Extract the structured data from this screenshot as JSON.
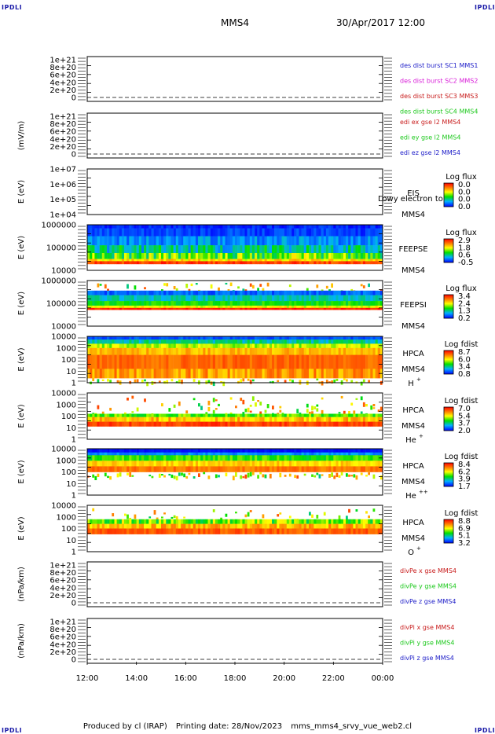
{
  "header": {
    "corner_label": "IPDLI",
    "spacecraft": "MMS4",
    "datetime": "30/Apr/2017 12:00"
  },
  "footer": {
    "produced_by": "Produced by cl (IRAP)",
    "printing_date": "Printing date: 28/Nov/2023",
    "script_name": "mms_mms4_srvy_vue_web2.cl"
  },
  "time_axis": {
    "ticks": [
      "12:00",
      "14:00",
      "16:00",
      "18:00",
      "20:00",
      "22:00",
      "00:00"
    ],
    "start_hour": 12,
    "end_hour": 24
  },
  "chart_data": [
    {
      "type": "line",
      "id": "des-dist",
      "ylabel": "",
      "ytick_labels": [
        "1e+21",
        "8e+20",
        "6e+20",
        "4e+20",
        "2e+20",
        "0"
      ],
      "ylim": [
        0,
        1e+21
      ],
      "legend": [
        {
          "text": "des dist burst SC1 MMS1",
          "color": "#1c1cc8"
        },
        {
          "text": "des dist burst SC2 MMS2",
          "color": "#d81cd8"
        },
        {
          "text": "des dist burst SC3 MMS3",
          "color": "#c81c1c"
        },
        {
          "text": "des dist burst SC4 MMS4",
          "color": "#1cc81c"
        }
      ]
    },
    {
      "type": "line",
      "id": "edi",
      "ylabel": "(mV/m)",
      "ytick_labels": [
        "1e+21",
        "8e+20",
        "6e+20",
        "4e+20",
        "2e+20",
        "0"
      ],
      "ylim": [
        0,
        1e+21
      ],
      "legend": [
        {
          "text": "edi ex gse l2 MMS4",
          "color": "#c81c1c"
        },
        {
          "text": "edi ey gse l2 MMS4",
          "color": "#1cc81c"
        },
        {
          "text": "edi ez gse l2 MMS4",
          "color": "#1c1cc8"
        }
      ]
    },
    {
      "type": "heatmap",
      "id": "eis",
      "ylabel": "E (eV)",
      "ytick_labels": [
        "1e+07",
        "1e+06",
        "1e+05",
        "1e+04"
      ],
      "log_scale": true,
      "instrument": "EIS",
      "spacecraft": "MMS4",
      "overlay_text": "Lowy electron to",
      "colorbar": {
        "title": "Log flux",
        "values": [
          "0.0",
          "0.0",
          "0.0",
          "0.0"
        ]
      },
      "data": "empty"
    },
    {
      "type": "heatmap",
      "id": "feepse",
      "ylabel": "E (eV)",
      "ytick_labels": [
        "1000000",
        "100000",
        "10000"
      ],
      "log_scale": true,
      "instrument": "FEEPSE",
      "spacecraft": "MMS4",
      "colorbar": {
        "title": "Log flux",
        "values": [
          "2.9",
          "1.8",
          "0.6",
          "-0.5"
        ]
      }
    },
    {
      "type": "heatmap",
      "id": "feepsi",
      "ylabel": "E (eV)",
      "ytick_labels": [
        "1000000",
        "100000",
        "10000"
      ],
      "log_scale": true,
      "instrument": "FEEPSI",
      "spacecraft": "MMS4",
      "colorbar": {
        "title": "Log flux",
        "values": [
          "3.4",
          "2.4",
          "1.3",
          "0.2"
        ]
      }
    },
    {
      "type": "heatmap",
      "id": "hpca-h",
      "ylabel": "E (eV)",
      "ytick_labels": [
        "10000",
        "1000",
        "100",
        "10",
        "1"
      ],
      "log_scale": true,
      "instrument": "HPCA",
      "spacecraft": "MMS4",
      "species": "H",
      "charge": "+",
      "colorbar": {
        "title": "Log fdist",
        "values": [
          "8.7",
          "6.0",
          "3.4",
          "0.8"
        ]
      }
    },
    {
      "type": "heatmap",
      "id": "hpca-he1",
      "ylabel": "E (eV)",
      "ytick_labels": [
        "10000",
        "1000",
        "100",
        "10",
        "1"
      ],
      "log_scale": true,
      "instrument": "HPCA",
      "spacecraft": "MMS4",
      "species": "He",
      "charge": "+",
      "colorbar": {
        "title": "Log fdist",
        "values": [
          "7.0",
          "5.4",
          "3.7",
          "2.0"
        ]
      }
    },
    {
      "type": "heatmap",
      "id": "hpca-he2",
      "ylabel": "E (eV)",
      "ytick_labels": [
        "10000",
        "1000",
        "100",
        "10",
        "1"
      ],
      "log_scale": true,
      "instrument": "HPCA",
      "spacecraft": "MMS4",
      "species": "He",
      "charge": "++",
      "colorbar": {
        "title": "Log fdist",
        "values": [
          "8.4",
          "6.2",
          "3.9",
          "1.7"
        ]
      }
    },
    {
      "type": "heatmap",
      "id": "hpca-o",
      "ylabel": "E (eV)",
      "ytick_labels": [
        "10000",
        "1000",
        "100",
        "10",
        "1"
      ],
      "log_scale": true,
      "instrument": "HPCA",
      "spacecraft": "MMS4",
      "species": "O",
      "charge": "+",
      "colorbar": {
        "title": "Log fdist",
        "values": [
          "8.8",
          "6.9",
          "5.1",
          "3.2"
        ]
      }
    },
    {
      "type": "line",
      "id": "divpe",
      "ylabel": "(nPa/km)",
      "ytick_labels": [
        "1e+21",
        "8e+20",
        "6e+20",
        "4e+20",
        "2e+20",
        "0"
      ],
      "ylim": [
        0,
        1e+21
      ],
      "legend": [
        {
          "text": "divPe x gse MMS4",
          "color": "#c81c1c"
        },
        {
          "text": "divPe y gse MMS4",
          "color": "#1cc81c"
        },
        {
          "text": "divPe z gse MMS4",
          "color": "#1c1cc8"
        }
      ]
    },
    {
      "type": "line",
      "id": "divpi",
      "ylabel": "(nPa/km)",
      "ytick_labels": [
        "1e+21",
        "8e+20",
        "6e+20",
        "4e+20",
        "2e+20",
        "0"
      ],
      "ylim": [
        0,
        1e+21
      ],
      "legend": [
        {
          "text": "divPi x gse MMS4",
          "color": "#c81c1c"
        },
        {
          "text": "divPi y gse MMS4",
          "color": "#1cc81c"
        },
        {
          "text": "divPi z gse MMS4",
          "color": "#1c1cc8"
        }
      ]
    }
  ]
}
